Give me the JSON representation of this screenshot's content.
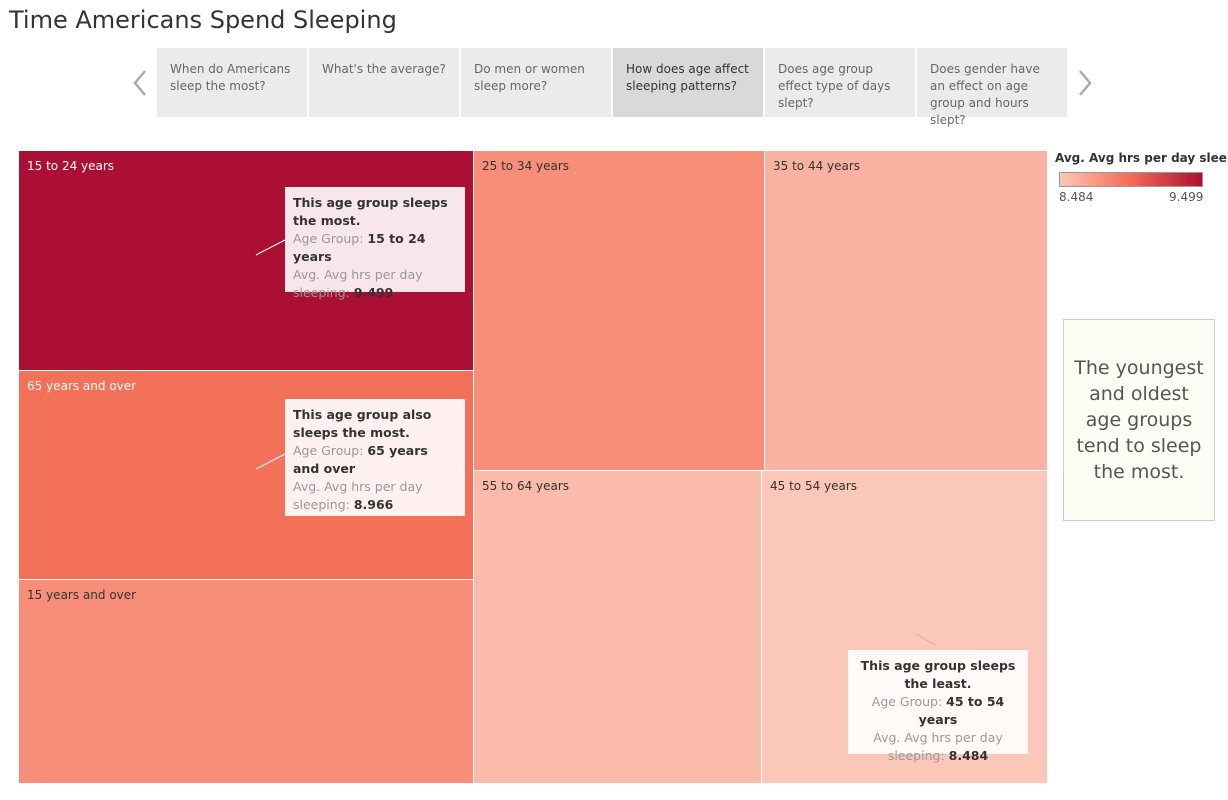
{
  "page": {
    "title": "Time Americans Spend Sleeping"
  },
  "story": {
    "tabs": [
      {
        "label": "When do Americans sleep the most?",
        "active": false
      },
      {
        "label": "What's the average?",
        "active": false
      },
      {
        "label": "Do men or women sleep more?",
        "active": false
      },
      {
        "label": "How does age affect sleeping patterns?",
        "active": true
      },
      {
        "label": "Does age group effect type of days slept?",
        "active": false
      },
      {
        "label": "Does gender have an effect on age group and hours slept?",
        "active": false
      }
    ],
    "prev_icon": "chevron-left-icon",
    "next_icon": "chevron-right-icon"
  },
  "chart_data": {
    "type": "treemap",
    "measure": "Avg. Avg hrs per day sleeping",
    "color_range": [
      8.484,
      9.499
    ],
    "color_low": "#fbc7b8",
    "color_high": "#ab1034",
    "items": [
      {
        "label": "15 to 24 years",
        "value": 9.499
      },
      {
        "label": "65 years and over",
        "value": 8.966
      },
      {
        "label": "15 years and over",
        "value": 8.8
      },
      {
        "label": "25 to 34 years",
        "value": 8.8
      },
      {
        "label": "35 to 44 years",
        "value": 8.6
      },
      {
        "label": "55 to 64 years",
        "value": 8.55
      },
      {
        "label": "45 to 54 years",
        "value": 8.484
      }
    ],
    "annotations": [
      {
        "target": "15 to 24 years",
        "heading": "This age group sleeps the most.",
        "group_key": "Age Group:",
        "group_val": "15 to 24 years",
        "measure_key": "Avg. Avg hrs per day sleeping:",
        "measure_val": "9.499"
      },
      {
        "target": "65 years and over",
        "heading": "This age group also sleeps the  most.",
        "group_key": "Age Group:",
        "group_val": "65 years and over",
        "measure_key": "Avg. Avg hrs per day sleeping:",
        "measure_val": "8.966"
      },
      {
        "target": "45 to 54 years",
        "heading": "This age group sleeps the least.",
        "group_key": "Age Group:",
        "group_val": "45 to 54 years",
        "measure_key": "Avg. Avg hrs per day sleeping:",
        "measure_val": "8.484"
      }
    ]
  },
  "legend": {
    "title": "Avg. Avg hrs per day slee..",
    "min_label": "8.484",
    "max_label": "9.499"
  },
  "note": {
    "text": "The youngest and oldest age groups tend to sleep the most."
  }
}
